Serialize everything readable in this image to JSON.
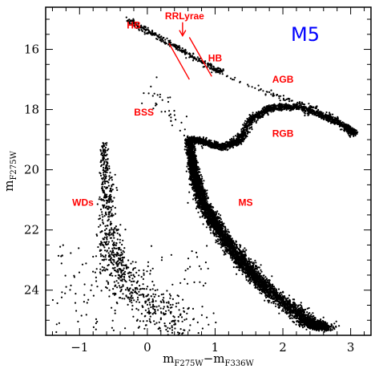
{
  "chart_data": {
    "type": "scatter",
    "cluster": "M5",
    "xlabel": {
      "base1": "m",
      "sub1": "F275W",
      "op": "−",
      "base2": "m",
      "sub2": "F336W"
    },
    "ylabel": {
      "base": "m",
      "sub": "F275W"
    },
    "xlim": [
      -1.5,
      3.3
    ],
    "ylim": [
      25.5,
      14.6
    ],
    "y_inverted": true,
    "xticks": [
      -1,
      0,
      1,
      2,
      3
    ],
    "yticks": [
      16,
      18,
      20,
      22,
      24
    ],
    "minor_x_step": 0.2,
    "minor_y_step": 0.5,
    "point_color": "#000000",
    "annotation_color": "#ff0000",
    "cluster_color": "#0000ff",
    "annotations": [
      {
        "text": "HB",
        "x": -0.2,
        "y": 15.3
      },
      {
        "text": "RRLyrae",
        "x": 0.55,
        "y": 15.0
      },
      {
        "text": "HB",
        "x": 1.0,
        "y": 16.4
      },
      {
        "text": "AGB",
        "x": 2.0,
        "y": 17.1
      },
      {
        "text": "BSS",
        "x": -0.05,
        "y": 18.2
      },
      {
        "text": "RGB",
        "x": 2.0,
        "y": 18.9
      },
      {
        "text": "MS",
        "x": 1.45,
        "y": 21.2
      },
      {
        "text": "WDs",
        "x": -0.95,
        "y": 21.2
      }
    ],
    "instability_strip": [
      {
        "x1": 0.32,
        "y1": 15.8,
        "x2": 0.62,
        "y2": 17.0
      },
      {
        "x1": 0.62,
        "y1": 15.6,
        "x2": 0.95,
        "y2": 16.9
      }
    ],
    "arrow": {
      "x1": 0.52,
      "y1": 15.1,
      "x2": 0.52,
      "y2": 15.55
    },
    "sequences": {
      "main_sequence": [
        [
          0.62,
          19.0
        ],
        [
          0.68,
          20.0
        ],
        [
          0.8,
          21.0
        ],
        [
          1.05,
          22.0
        ],
        [
          1.38,
          23.0
        ],
        [
          1.78,
          24.0
        ],
        [
          2.35,
          25.0
        ],
        [
          2.6,
          25.3
        ]
      ],
      "subgiant_branch": [
        [
          0.62,
          19.0
        ],
        [
          0.8,
          19.05
        ],
        [
          1.1,
          19.25
        ],
        [
          1.35,
          19.05
        ]
      ],
      "red_giant_branch": [
        [
          1.35,
          19.05
        ],
        [
          1.55,
          18.3
        ],
        [
          1.8,
          17.95
        ],
        [
          2.2,
          17.9
        ],
        [
          2.6,
          18.2
        ],
        [
          2.95,
          18.6
        ],
        [
          3.05,
          18.8
        ]
      ],
      "horizontal_branch": [
        [
          -0.3,
          15.0
        ],
        [
          0.0,
          15.4
        ],
        [
          0.3,
          15.75
        ],
        [
          0.6,
          16.15
        ],
        [
          0.9,
          16.55
        ],
        [
          1.1,
          16.75
        ]
      ],
      "agb": [
        [
          1.2,
          16.9
        ],
        [
          1.6,
          17.3
        ],
        [
          2.0,
          17.6
        ],
        [
          2.4,
          17.9
        ],
        [
          2.8,
          18.3
        ]
      ],
      "white_dwarfs": [
        [
          -0.65,
          19.2
        ],
        [
          -0.6,
          20.5
        ],
        [
          -0.58,
          21.6
        ],
        [
          -0.55,
          22.6
        ],
        [
          -0.45,
          23.3
        ],
        [
          -0.2,
          24.0
        ],
        [
          0.15,
          24.6
        ],
        [
          0.6,
          25.2
        ]
      ],
      "bss": [
        [
          0.05,
          17.2
        ],
        [
          0.2,
          17.7
        ],
        [
          0.35,
          18.2
        ],
        [
          0.5,
          18.6
        ]
      ]
    }
  }
}
